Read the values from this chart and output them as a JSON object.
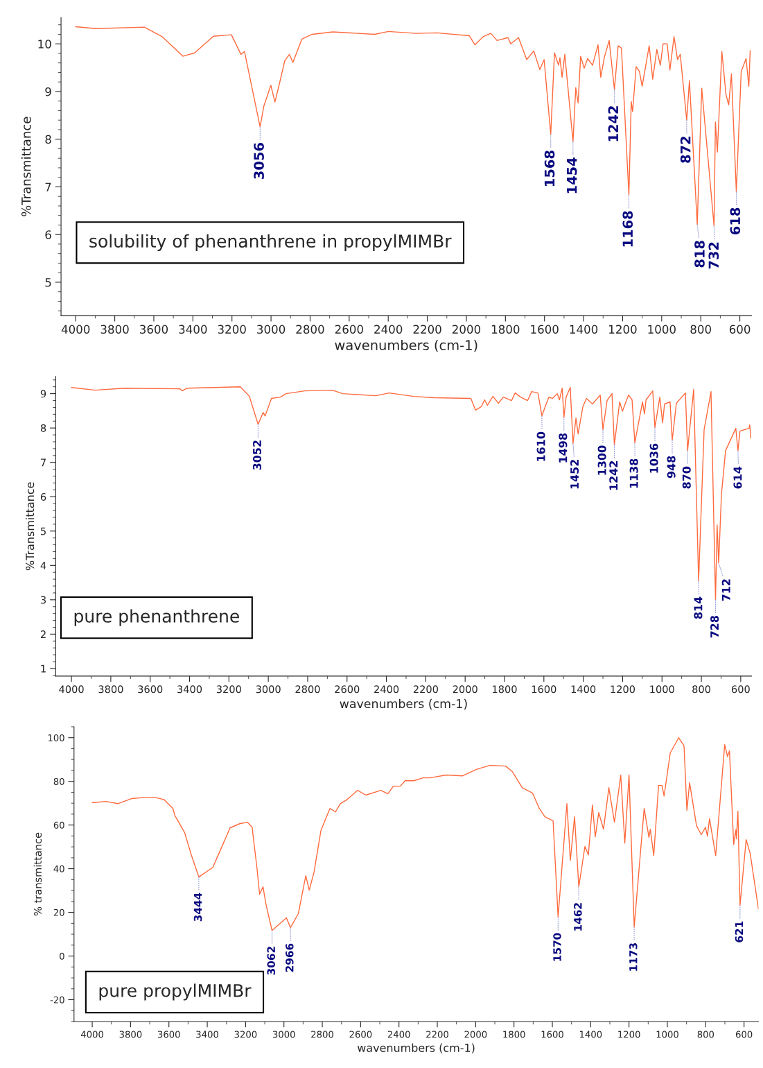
{
  "chart_data": [
    {
      "type": "line",
      "title": "solubility of phenanthrene in propylMIMBr",
      "xlabel": "wavenumbers (cm-1)",
      "ylabel": "%Transmittance",
      "x": [
        4000,
        3897,
        3649,
        3557,
        3451,
        3391,
        3295,
        3203,
        3154,
        3136,
        3056,
        3037,
        3001,
        2980,
        2959,
        2930,
        2906,
        2888,
        2842,
        2789,
        2683,
        2470,
        2399,
        2258,
        2151,
        1985,
        1956,
        1914,
        1875,
        1843,
        1787,
        1773,
        1733,
        1691,
        1655,
        1624,
        1602,
        1568,
        1549,
        1528,
        1521,
        1510,
        1496,
        1454,
        1440,
        1428,
        1415,
        1397,
        1379,
        1354,
        1326,
        1312,
        1294,
        1269,
        1242,
        1223,
        1206,
        1168,
        1156,
        1149,
        1131,
        1114,
        1100,
        1064,
        1046,
        1025,
        1007,
        993,
        972,
        958,
        937,
        919,
        905,
        872,
        858,
        818,
        795,
        732,
        725,
        715,
        692,
        671,
        657,
        643,
        618,
        593,
        568,
        554,
        547
      ],
      "series": [
        {
          "color": "#ff6a3d",
          "values": [
            10.36,
            10.32,
            10.35,
            10.15,
            9.74,
            9.81,
            10.16,
            10.19,
            9.78,
            9.84,
            8.26,
            8.69,
            9.13,
            8.78,
            9.13,
            9.64,
            9.78,
            9.61,
            10.1,
            10.2,
            10.25,
            10.2,
            10.26,
            10.22,
            10.23,
            10.17,
            9.98,
            10.15,
            10.22,
            10.07,
            10.13,
            10.0,
            10.13,
            9.67,
            9.85,
            9.46,
            9.67,
            8.1,
            9.81,
            9.55,
            9.71,
            9.3,
            9.78,
            7.95,
            9.08,
            8.76,
            9.74,
            9.49,
            9.69,
            9.55,
            9.98,
            9.3,
            9.71,
            10.07,
            9.04,
            9.96,
            9.91,
            6.83,
            8.79,
            8.58,
            9.52,
            9.42,
            9.11,
            9.96,
            9.26,
            9.88,
            9.55,
            10.0,
            10.0,
            9.45,
            10.15,
            9.67,
            9.78,
            8.4,
            9.23,
            6.21,
            9.07,
            6.18,
            8.36,
            7.73,
            9.84,
            8.94,
            8.72,
            9.37,
            6.9,
            9.42,
            9.69,
            9.11,
            9.86
          ]
        }
      ],
      "xlim": [
        4075,
        540
      ],
      "ylim": [
        4.3,
        10.55
      ],
      "xticks": [
        4000,
        3800,
        3600,
        3400,
        3200,
        3000,
        2800,
        2600,
        2400,
        2200,
        2000,
        1800,
        1600,
        1400,
        1200,
        1000,
        800,
        600
      ],
      "yticks": [
        5,
        6,
        7,
        8,
        9,
        10
      ],
      "annotations": [
        {
          "text": "3056",
          "x": 3056,
          "y": 8.26
        },
        {
          "text": "1568",
          "x": 1568,
          "y": 8.1
        },
        {
          "text": "1454",
          "x": 1454,
          "y": 7.95
        },
        {
          "text": "1242",
          "x": 1242,
          "y": 9.04
        },
        {
          "text": "1168",
          "x": 1168,
          "y": 6.83
        },
        {
          "text": "872",
          "x": 872,
          "y": 8.4
        },
        {
          "text": "818",
          "x": 818,
          "y": 6.21
        },
        {
          "text": "732",
          "x": 732,
          "y": 6.18
        },
        {
          "text": "618",
          "x": 618,
          "y": 6.9
        }
      ]
    },
    {
      "type": "line",
      "title": "pure phenanthrene",
      "xlabel": "wavenumbers (cm-1)",
      "ylabel": "%Transmittance",
      "x": [
        4000,
        3880,
        3729,
        3448,
        3437,
        3413,
        3142,
        3096,
        3052,
        3026,
        3016,
        2984,
        2938,
        2910,
        2815,
        2674,
        2622,
        2453,
        2386,
        2260,
        2158,
        1971,
        1947,
        1918,
        1901,
        1887,
        1859,
        1831,
        1806,
        1764,
        1746,
        1718,
        1683,
        1662,
        1630,
        1610,
        1591,
        1574,
        1556,
        1532,
        1521,
        1507,
        1498,
        1487,
        1466,
        1452,
        1437,
        1426,
        1402,
        1384,
        1353,
        1314,
        1300,
        1279,
        1254,
        1242,
        1215,
        1201,
        1170,
        1152,
        1138,
        1099,
        1089,
        1081,
        1047,
        1036,
        1011,
        997,
        987,
        959,
        948,
        927,
        881,
        870,
        839,
        814,
        786,
        751,
        728,
        720,
        712,
        698,
        677,
        625,
        614,
        604,
        558,
        554,
        549
      ],
      "series": [
        {
          "color": "#ff6a3d",
          "values": [
            9.18,
            9.1,
            9.16,
            9.14,
            9.08,
            9.16,
            9.2,
            8.92,
            8.11,
            8.45,
            8.35,
            8.86,
            8.9,
            9.0,
            9.08,
            9.1,
            9.0,
            8.94,
            9.02,
            8.92,
            8.88,
            8.86,
            8.52,
            8.62,
            8.82,
            8.66,
            8.92,
            8.72,
            8.9,
            8.8,
            9.02,
            8.9,
            8.8,
            9.06,
            9.02,
            8.35,
            8.66,
            8.9,
            8.86,
            9.0,
            8.82,
            9.16,
            8.31,
            8.9,
            9.18,
            7.55,
            8.29,
            7.83,
            8.62,
            8.86,
            8.7,
            8.96,
            7.95,
            8.8,
            9.0,
            7.51,
            8.76,
            8.49,
            8.96,
            8.82,
            7.57,
            8.76,
            8.41,
            8.82,
            9.08,
            8.01,
            8.9,
            8.15,
            8.7,
            8.76,
            7.65,
            8.72,
            9.02,
            7.34,
            9.12,
            3.55,
            7.95,
            9.06,
            3.0,
            5.18,
            4.07,
            6.07,
            7.34,
            7.99,
            7.34,
            7.91,
            7.99,
            8.09,
            7.71
          ]
        }
      ],
      "xlim": [
        4080,
        545
      ],
      "ylim": [
        0.78,
        9.5
      ],
      "xticks": [
        4000,
        3800,
        3600,
        3400,
        3200,
        3000,
        2800,
        2600,
        2400,
        2200,
        2000,
        1800,
        1600,
        1400,
        1200,
        1000,
        800,
        600
      ],
      "yticks": [
        1,
        2,
        3,
        4,
        5,
        6,
        7,
        8,
        9
      ],
      "annotations": [
        {
          "text": "3052",
          "x": 3052,
          "y": 8.11
        },
        {
          "text": "1610",
          "x": 1610,
          "y": 8.35
        },
        {
          "text": "1498",
          "x": 1498,
          "y": 8.31
        },
        {
          "text": "1452",
          "x": 1452,
          "y": 7.55
        },
        {
          "text": "1300",
          "x": 1300,
          "y": 7.95
        },
        {
          "text": "1242",
          "x": 1242,
          "y": 7.51
        },
        {
          "text": "1138",
          "x": 1138,
          "y": 7.57
        },
        {
          "text": "1036",
          "x": 1036,
          "y": 8.01
        },
        {
          "text": "948",
          "x": 948,
          "y": 7.65
        },
        {
          "text": "870",
          "x": 870,
          "y": 7.34
        },
        {
          "text": "814",
          "x": 814,
          "y": 3.55
        },
        {
          "text": "728",
          "x": 728,
          "y": 3.0
        },
        {
          "text": "712",
          "x": 712,
          "y": 4.07
        },
        {
          "text": "614",
          "x": 614,
          "y": 7.34
        }
      ]
    },
    {
      "type": "line",
      "title": "pure propylMIMBr",
      "xlabel": "wavenumbers (cm-1)",
      "ylabel": "% transmittance",
      "x": [
        4000,
        3928,
        3867,
        3795,
        3716,
        3677,
        3626,
        3579,
        3569,
        3518,
        3482,
        3444,
        3371,
        3328,
        3281,
        3231,
        3191,
        3166,
        3141,
        3127,
        3109,
        3094,
        3062,
        2987,
        2966,
        2925,
        2886,
        2868,
        2843,
        2807,
        2760,
        2731,
        2706,
        2670,
        2616,
        2573,
        2494,
        2458,
        2429,
        2393,
        2368,
        2322,
        2275,
        2239,
        2153,
        2070,
        1998,
        1926,
        1844,
        1808,
        1757,
        1703,
        1668,
        1639,
        1596,
        1570,
        1524,
        1506,
        1484,
        1462,
        1430,
        1412,
        1391,
        1376,
        1358,
        1333,
        1305,
        1276,
        1243,
        1222,
        1200,
        1173,
        1121,
        1096,
        1089,
        1071,
        1046,
        1028,
        1017,
        985,
        941,
        913,
        898,
        884,
        848,
        823,
        801,
        791,
        780,
        748,
        701,
        686,
        676,
        654,
        643,
        640,
        632,
        621,
        589,
        568,
        525
      ],
      "series": [
        {
          "color": "#ff6a3d",
          "values": [
            70.2,
            70.8,
            69.8,
            72.1,
            72.7,
            72.7,
            71.7,
            67.6,
            64.4,
            56.5,
            46.0,
            36.2,
            40.6,
            49.2,
            58.7,
            60.6,
            61.3,
            59.0,
            40.6,
            28.3,
            31.7,
            23.8,
            11.7,
            17.5,
            13.0,
            19.4,
            36.8,
            30.2,
            38.4,
            57.5,
            67.6,
            66.0,
            69.8,
            71.7,
            75.9,
            73.7,
            75.9,
            74.3,
            77.8,
            77.8,
            80.3,
            80.3,
            81.6,
            81.6,
            82.9,
            82.5,
            85.4,
            87.3,
            87.0,
            84.4,
            77.1,
            74.6,
            67.6,
            63.8,
            61.9,
            17.8,
            69.8,
            43.8,
            63.8,
            31.7,
            50.2,
            46.3,
            69.2,
            54.6,
            65.7,
            58.1,
            77.1,
            61.3,
            82.9,
            51.7,
            82.9,
            13.3,
            67.6,
            54.3,
            58.1,
            46.0,
            78.1,
            78.1,
            73.3,
            93.0,
            100.0,
            96.2,
            66.7,
            79.4,
            59.7,
            55.6,
            59.0,
            54.9,
            62.9,
            46.0,
            96.8,
            91.4,
            94.0,
            51.1,
            57.8,
            53.7,
            66.3,
            23.2,
            53.3,
            47.0,
            21.6
          ]
        }
      ],
      "xlim": [
        4095,
        525
      ],
      "ylim": [
        -30,
        105
      ],
      "xticks": [
        4000,
        3800,
        3600,
        3400,
        3200,
        3000,
        2800,
        2600,
        2400,
        2200,
        2000,
        1800,
        1600,
        1400,
        1200,
        1000,
        800,
        600
      ],
      "yticks": [
        -20,
        0,
        20,
        40,
        60,
        80,
        100
      ],
      "annotations": [
        {
          "text": "3444",
          "x": 3444,
          "y": 36.2
        },
        {
          "text": "3062",
          "x": 3062,
          "y": 11.7
        },
        {
          "text": "2966",
          "x": 2966,
          "y": 13.0
        },
        {
          "text": "1570",
          "x": 1570,
          "y": 17.8
        },
        {
          "text": "1462",
          "x": 1462,
          "y": 31.7
        },
        {
          "text": "1173",
          "x": 1173,
          "y": 13.3
        },
        {
          "text": "621",
          "x": 621,
          "y": 23.2
        }
      ]
    }
  ]
}
